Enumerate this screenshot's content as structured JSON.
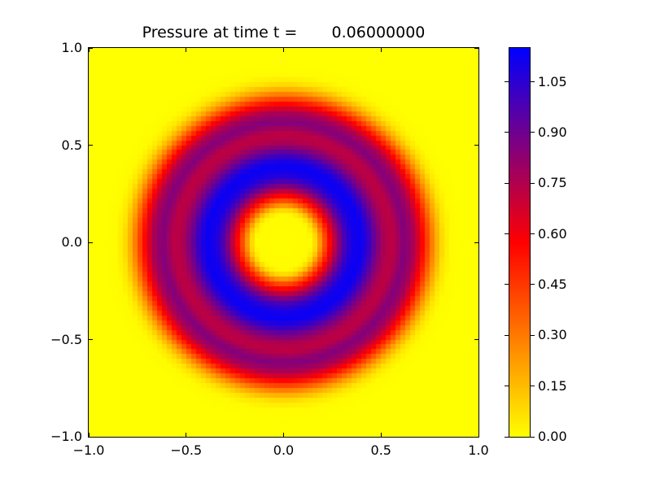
{
  "chart_data": {
    "type": "heatmap",
    "title": "Pressure at time t =       0.06000000",
    "x_range": [
      -1.0,
      1.0
    ],
    "y_range": [
      -1.0,
      1.0
    ],
    "x_tick_values": [
      -1.0,
      -0.5,
      0.0,
      0.5,
      1.0
    ],
    "x_tick_labels": [
      "−1.0",
      "−0.5",
      "0.0",
      "0.5",
      "1.0"
    ],
    "y_tick_values": [
      1.0,
      0.5,
      0.0,
      -0.5,
      -1.0
    ],
    "y_tick_labels": [
      "1.0",
      "0.5",
      "0.0",
      "−0.5",
      "−1.0"
    ],
    "grid": false,
    "grid_resolution": 80,
    "radial_pressure_profile": [
      [
        0.0,
        0.0
      ],
      [
        0.14,
        0.01
      ],
      [
        0.17,
        0.1
      ],
      [
        0.2,
        0.32
      ],
      [
        0.24,
        0.58
      ],
      [
        0.28,
        0.82
      ],
      [
        0.31,
        0.97
      ],
      [
        0.35,
        1.1
      ],
      [
        0.4,
        1.13
      ],
      [
        0.44,
        1.02
      ],
      [
        0.47,
        0.9
      ],
      [
        0.52,
        0.75
      ],
      [
        0.56,
        0.72
      ],
      [
        0.62,
        0.86
      ],
      [
        0.67,
        0.76
      ],
      [
        0.71,
        0.58
      ],
      [
        0.75,
        0.36
      ],
      [
        0.78,
        0.2
      ],
      [
        0.82,
        0.06
      ],
      [
        0.86,
        0.01
      ],
      [
        0.92,
        0.0
      ],
      [
        1.45,
        0.0
      ]
    ],
    "colorbar": {
      "vmin": 0.0,
      "vmax": 1.15,
      "tick_values": [
        0.0,
        0.15,
        0.3,
        0.45,
        0.6,
        0.75,
        0.9,
        1.05
      ],
      "tick_labels": [
        "0.00",
        "0.15",
        "0.30",
        "0.45",
        "0.60",
        "0.75",
        "0.90",
        "1.05"
      ],
      "colormap_stops": [
        {
          "t": 0.0,
          "color": "#ffff00"
        },
        {
          "t": 0.5,
          "color": "#ff0000"
        },
        {
          "t": 1.0,
          "color": "#0000ff"
        }
      ],
      "position": "right"
    }
  }
}
